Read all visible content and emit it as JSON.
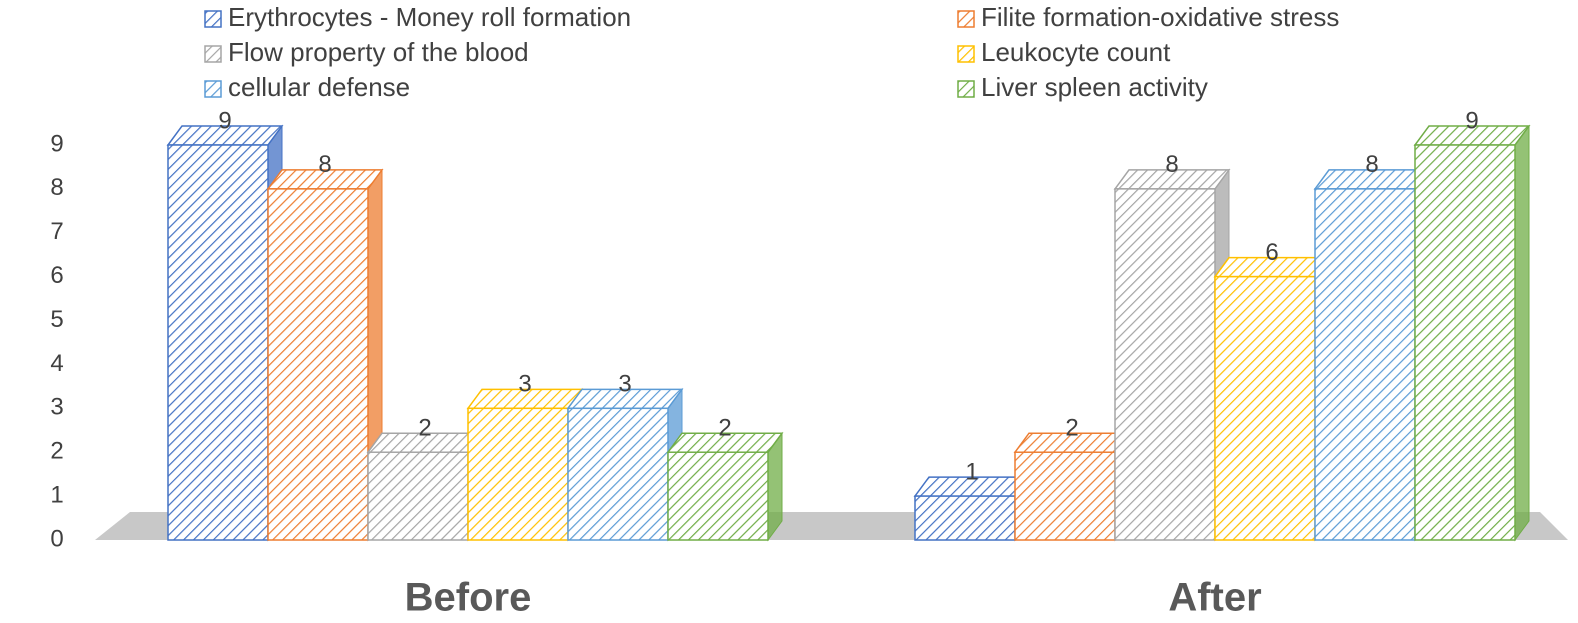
{
  "chart_data": {
    "type": "bar3d",
    "categories": [
      "Before",
      "After"
    ],
    "series": [
      {
        "name": "Erythrocytes - Money roll formation",
        "color": "#4472c4",
        "values": [
          9,
          1
        ]
      },
      {
        "name": "Filite formation-oxidative stress",
        "color": "#ed7d31",
        "values": [
          8,
          2
        ]
      },
      {
        "name": "Flow property of the blood",
        "color": "#a5a5a5",
        "values": [
          2,
          8
        ]
      },
      {
        "name": "Leukocyte count",
        "color": "#ffc000",
        "values": [
          3,
          6
        ]
      },
      {
        "name": "cellular defense",
        "color": "#5b9bd5",
        "values": [
          3,
          8
        ]
      },
      {
        "name": "Liver spleen activity",
        "color": "#70ad47",
        "values": [
          2,
          9
        ]
      }
    ],
    "ylim": [
      0,
      9
    ],
    "yticks": [
      0,
      1,
      2,
      3,
      4,
      5,
      6,
      7,
      8,
      9
    ],
    "grid": false,
    "legend": "top"
  }
}
